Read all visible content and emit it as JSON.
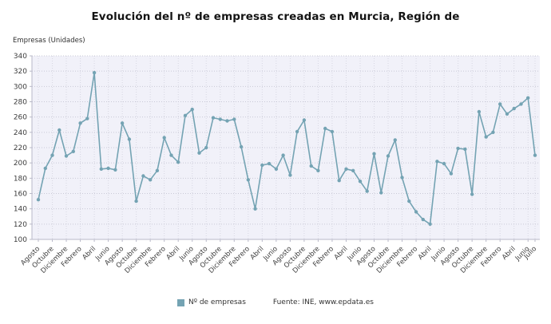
{
  "header": {
    "title": "Evolución del nº de empresas creadas en Murcia, Región de"
  },
  "legend": {
    "label": "Nº de empresas",
    "swatch_color": "#74a3b3"
  },
  "footer": {
    "source": "Fuente: INE, www.epdata.es"
  },
  "chart_data": {
    "type": "line",
    "title": "Evolución del nº de empresas creadas en Murcia, Región de",
    "xlabel": "",
    "ylabel": "Empresas (Unidades)",
    "ylim": [
      100,
      340
    ],
    "y_tick_step": 20,
    "grid": true,
    "legend_position": "bottom",
    "plot_bg": "#f1f1f9",
    "grid_color": "#c9c9d6",
    "grid_color_v": "#d7d7e2",
    "axis_color": "#b9b9c9",
    "tick_label_color": "#3c3c3c",
    "series": [
      {
        "name": "Nº de empresas",
        "color": "#74a3b3",
        "values": [
          152,
          193,
          210,
          243,
          209,
          215,
          252,
          258,
          318,
          192,
          193,
          191,
          252,
          231,
          150,
          183,
          178,
          190,
          233,
          210,
          201,
          262,
          270,
          213,
          220,
          259,
          257,
          255,
          257,
          221,
          178,
          140,
          197,
          199,
          192,
          210,
          184,
          241,
          256,
          196,
          190,
          245,
          241,
          177,
          192,
          190,
          176,
          163,
          212,
          161,
          209,
          230,
          181,
          150,
          136,
          126,
          120,
          202,
          199,
          186,
          219,
          218,
          159,
          267,
          234,
          240,
          277,
          264,
          271,
          277,
          285,
          210
        ]
      }
    ],
    "x_tick_labels": [
      {
        "i": 0,
        "label": "Agosto"
      },
      {
        "i": 2,
        "label": "Octubre"
      },
      {
        "i": 4,
        "label": "Diciembre"
      },
      {
        "i": 6,
        "label": "Febrero"
      },
      {
        "i": 8,
        "label": "Abril"
      },
      {
        "i": 10,
        "label": "Junio"
      },
      {
        "i": 12,
        "label": "Agosto"
      },
      {
        "i": 14,
        "label": "Octubre"
      },
      {
        "i": 16,
        "label": "Diciembre"
      },
      {
        "i": 18,
        "label": "Febrero"
      },
      {
        "i": 20,
        "label": "Abril"
      },
      {
        "i": 22,
        "label": "Junio"
      },
      {
        "i": 24,
        "label": "Agosto"
      },
      {
        "i": 26,
        "label": "Octubre"
      },
      {
        "i": 28,
        "label": "Diciembre"
      },
      {
        "i": 30,
        "label": "Febrero"
      },
      {
        "i": 32,
        "label": "Abril"
      },
      {
        "i": 34,
        "label": "Junio"
      },
      {
        "i": 36,
        "label": "Agosto"
      },
      {
        "i": 38,
        "label": "Octubre"
      },
      {
        "i": 40,
        "label": "Diciembre"
      },
      {
        "i": 42,
        "label": "Febrero"
      },
      {
        "i": 44,
        "label": "Abril"
      },
      {
        "i": 46,
        "label": "Junio"
      },
      {
        "i": 48,
        "label": "Agosto"
      },
      {
        "i": 50,
        "label": "Octubre"
      },
      {
        "i": 52,
        "label": "Diciembre"
      },
      {
        "i": 54,
        "label": "Febrero"
      },
      {
        "i": 56,
        "label": "Abril"
      },
      {
        "i": 58,
        "label": "Junio"
      },
      {
        "i": 60,
        "label": "Agosto"
      },
      {
        "i": 62,
        "label": "Octubre"
      },
      {
        "i": 64,
        "label": "Diciembre"
      },
      {
        "i": 66,
        "label": "Febrero"
      },
      {
        "i": 68,
        "label": "Abril"
      },
      {
        "i": 70,
        "label": "Junio"
      },
      {
        "i": 71,
        "label": "Julio"
      }
    ]
  }
}
